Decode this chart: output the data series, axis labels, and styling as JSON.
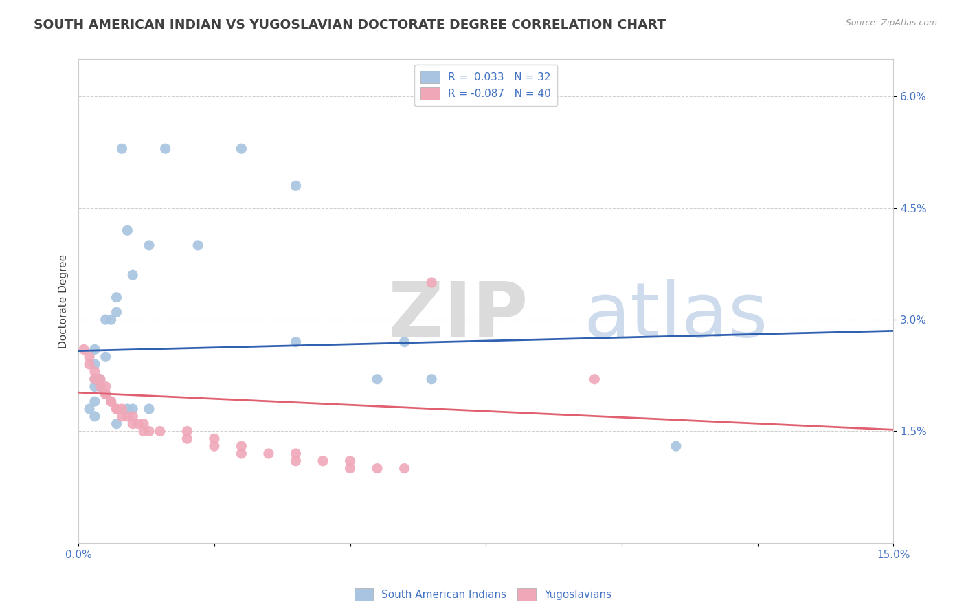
{
  "title": "SOUTH AMERICAN INDIAN VS YUGOSLAVIAN DOCTORATE DEGREE CORRELATION CHART",
  "source": "Source: ZipAtlas.com",
  "ylabel": "Doctorate Degree",
  "xlim": [
    0.0,
    0.15
  ],
  "ylim": [
    0.0,
    0.065
  ],
  "xticks": [
    0.0,
    0.025,
    0.05,
    0.075,
    0.1,
    0.125,
    0.15
  ],
  "yticks": [
    0.015,
    0.03,
    0.045,
    0.06
  ],
  "ytick_labels": [
    "1.5%",
    "3.0%",
    "4.5%",
    "6.0%"
  ],
  "xtick_labels_show": [
    "0.0%",
    "15.0%"
  ],
  "xtick_positions_show": [
    0.0,
    0.15
  ],
  "legend_r1": "R =  0.033",
  "legend_n1": "N = 32",
  "legend_r2": "R = -0.087",
  "legend_n2": "N = 40",
  "color_blue": "#a8c4e0",
  "color_pink": "#f0a8b8",
  "line_blue": "#3060b0",
  "line_pink": "#e06070",
  "blue_scatter": [
    [
      0.008,
      0.053
    ],
    [
      0.016,
      0.053
    ],
    [
      0.03,
      0.053
    ],
    [
      0.04,
      0.048
    ],
    [
      0.009,
      0.042
    ],
    [
      0.013,
      0.04
    ],
    [
      0.022,
      0.04
    ],
    [
      0.01,
      0.036
    ],
    [
      0.007,
      0.033
    ],
    [
      0.007,
      0.031
    ],
    [
      0.005,
      0.03
    ],
    [
      0.006,
      0.03
    ],
    [
      0.003,
      0.026
    ],
    [
      0.005,
      0.025
    ],
    [
      0.003,
      0.024
    ],
    [
      0.003,
      0.022
    ],
    [
      0.004,
      0.022
    ],
    [
      0.004,
      0.021
    ],
    [
      0.003,
      0.021
    ],
    [
      0.005,
      0.02
    ],
    [
      0.003,
      0.019
    ],
    [
      0.002,
      0.018
    ],
    [
      0.009,
      0.018
    ],
    [
      0.01,
      0.018
    ],
    [
      0.013,
      0.018
    ],
    [
      0.003,
      0.017
    ],
    [
      0.007,
      0.016
    ],
    [
      0.04,
      0.027
    ],
    [
      0.06,
      0.027
    ],
    [
      0.055,
      0.022
    ],
    [
      0.065,
      0.022
    ],
    [
      0.11,
      0.013
    ]
  ],
  "pink_scatter": [
    [
      0.001,
      0.026
    ],
    [
      0.002,
      0.025
    ],
    [
      0.002,
      0.024
    ],
    [
      0.003,
      0.023
    ],
    [
      0.003,
      0.022
    ],
    [
      0.004,
      0.022
    ],
    [
      0.004,
      0.021
    ],
    [
      0.005,
      0.021
    ],
    [
      0.005,
      0.02
    ],
    [
      0.005,
      0.02
    ],
    [
      0.006,
      0.019
    ],
    [
      0.006,
      0.019
    ],
    [
      0.007,
      0.018
    ],
    [
      0.007,
      0.018
    ],
    [
      0.008,
      0.018
    ],
    [
      0.008,
      0.017
    ],
    [
      0.009,
      0.017
    ],
    [
      0.01,
      0.017
    ],
    [
      0.01,
      0.016
    ],
    [
      0.011,
      0.016
    ],
    [
      0.012,
      0.016
    ],
    [
      0.012,
      0.015
    ],
    [
      0.013,
      0.015
    ],
    [
      0.015,
      0.015
    ],
    [
      0.02,
      0.015
    ],
    [
      0.02,
      0.014
    ],
    [
      0.025,
      0.014
    ],
    [
      0.025,
      0.013
    ],
    [
      0.03,
      0.013
    ],
    [
      0.03,
      0.012
    ],
    [
      0.035,
      0.012
    ],
    [
      0.04,
      0.012
    ],
    [
      0.04,
      0.011
    ],
    [
      0.045,
      0.011
    ],
    [
      0.05,
      0.011
    ],
    [
      0.05,
      0.01
    ],
    [
      0.055,
      0.01
    ],
    [
      0.06,
      0.01
    ],
    [
      0.065,
      0.035
    ],
    [
      0.095,
      0.022
    ]
  ],
  "blue_line_x": [
    0.0,
    0.15
  ],
  "blue_line_y": [
    0.0258,
    0.0285
  ],
  "pink_line_x": [
    0.0,
    0.15
  ],
  "pink_line_y": [
    0.0202,
    0.0152
  ],
  "grid_color": "#d0d0d0",
  "background_color": "#ffffff",
  "title_color": "#404040",
  "title_fontsize": 13.5,
  "label_fontsize": 11,
  "tick_fontsize": 11,
  "legend_fontsize": 11
}
